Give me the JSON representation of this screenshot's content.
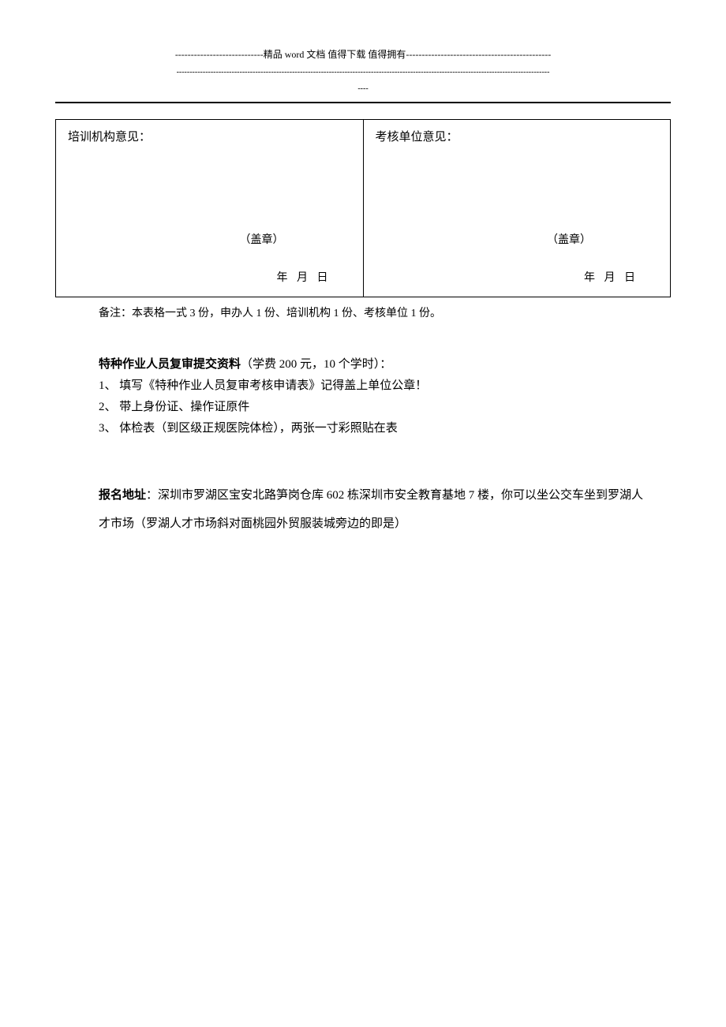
{
  "header": {
    "line1": "----------------------------精品 word 文档  值得下载  值得拥有----------------------------------------------",
    "line2": "----------------------------------------------------------------------------------------------------------------------------------------------",
    "line3": "----"
  },
  "opinionTable": {
    "left": {
      "title": "培训机构意见：",
      "stamp": "（盖章）",
      "date": "年  月  日"
    },
    "right": {
      "title": "考核单位意见：",
      "stamp": "（盖章）",
      "date": "年  月  日"
    }
  },
  "note": "备注：本表格一式 3 份，申办人 1 份、培训机构 1 份、考核单位 1 份。",
  "materialsSection": {
    "titleBold": "特种作业人员复审提交资料",
    "titleNormal": "（学费 200 元，10 个学时）：",
    "items": [
      "1、 填写《特种作业人员复审考核申请表》记得盖上单位公章！",
      "2、 带上身份证、操作证原件",
      "3、 体检表（到区级正规医院体检），两张一寸彩照贴在表"
    ]
  },
  "addressSection": {
    "title": "报名地址",
    "colon": "：",
    "text": "深圳市罗湖区宝安北路笋岗仓库 602 栋深圳市安全教育基地 7 楼，你可以坐公交车坐到罗湖人才市场（罗湖人才市场斜对面桃园外贸服装城旁边的即是）"
  }
}
